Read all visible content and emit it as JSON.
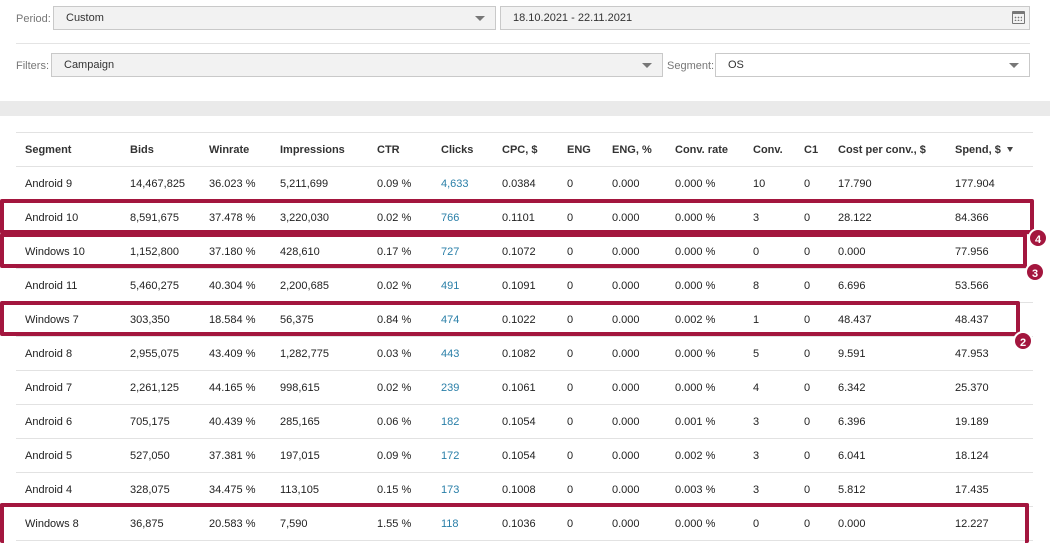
{
  "period": {
    "label": "Period:",
    "value": "Custom",
    "date_range": "18.10.2021 - 22.11.2021"
  },
  "filters": {
    "label": "Filters:",
    "value": "Campaign"
  },
  "segment": {
    "label": "Segment:",
    "value": "OS"
  },
  "table": {
    "columns": [
      "Segment",
      "Bids",
      "Winrate",
      "Impressions",
      "CTR",
      "Clicks",
      "CPC, $",
      "ENG",
      "ENG, %",
      "Conv. rate",
      "Conv.",
      "C1",
      "Cost per conv., $",
      "Spend, $"
    ],
    "sorted_column": "Spend, $",
    "rows": [
      [
        "Android 9",
        "14,467,825",
        "36.023 %",
        "5,211,699",
        "0.09 %",
        "4,633",
        "0.0384",
        "0",
        "0.000",
        "0.000 %",
        "10",
        "0",
        "17.790",
        "177.904"
      ],
      [
        "Android 10",
        "8,591,675",
        "37.478 %",
        "3,220,030",
        "0.02 %",
        "766",
        "0.1101",
        "0",
        "0.000",
        "0.000 %",
        "3",
        "0",
        "28.122",
        "84.366"
      ],
      [
        "Windows 10",
        "1,152,800",
        "37.180 %",
        "428,610",
        "0.17 %",
        "727",
        "0.1072",
        "0",
        "0.000",
        "0.000 %",
        "0",
        "0",
        "0.000",
        "77.956"
      ],
      [
        "Android 11",
        "5,460,275",
        "40.304 %",
        "2,200,685",
        "0.02 %",
        "491",
        "0.1091",
        "0",
        "0.000",
        "0.000 %",
        "8",
        "0",
        "6.696",
        "53.566"
      ],
      [
        "Windows 7",
        "303,350",
        "18.584 %",
        "56,375",
        "0.84 %",
        "474",
        "0.1022",
        "0",
        "0.000",
        "0.002 %",
        "1",
        "0",
        "48.437",
        "48.437"
      ],
      [
        "Android 8",
        "2,955,075",
        "43.409 %",
        "1,282,775",
        "0.03 %",
        "443",
        "0.1082",
        "0",
        "0.000",
        "0.000 %",
        "5",
        "0",
        "9.591",
        "47.953"
      ],
      [
        "Android 7",
        "2,261,125",
        "44.165 %",
        "998,615",
        "0.02 %",
        "239",
        "0.1061",
        "0",
        "0.000",
        "0.000 %",
        "4",
        "0",
        "6.342",
        "25.370"
      ],
      [
        "Android 6",
        "705,175",
        "40.439 %",
        "285,165",
        "0.06 %",
        "182",
        "0.1054",
        "0",
        "0.000",
        "0.001 %",
        "3",
        "0",
        "6.396",
        "19.189"
      ],
      [
        "Android 5",
        "527,050",
        "37.381 %",
        "197,015",
        "0.09 %",
        "172",
        "0.1054",
        "0",
        "0.000",
        "0.002 %",
        "3",
        "0",
        "6.041",
        "18.124"
      ],
      [
        "Android 4",
        "328,075",
        "34.475 %",
        "113,105",
        "0.15 %",
        "173",
        "0.1008",
        "0",
        "0.000",
        "0.003 %",
        "3",
        "0",
        "5.812",
        "17.435"
      ],
      [
        "Windows 8",
        "36,875",
        "20.583 %",
        "7,590",
        "1.55 %",
        "118",
        "0.1036",
        "0",
        "0.000",
        "0.000 %",
        "0",
        "0",
        "0.000",
        "12.227"
      ]
    ]
  },
  "annotations": {
    "badge_4": "4",
    "badge_3": "3",
    "badge_2": "2"
  },
  "colors": {
    "highlight": "#a3163e",
    "link": "#2a7fa8"
  }
}
